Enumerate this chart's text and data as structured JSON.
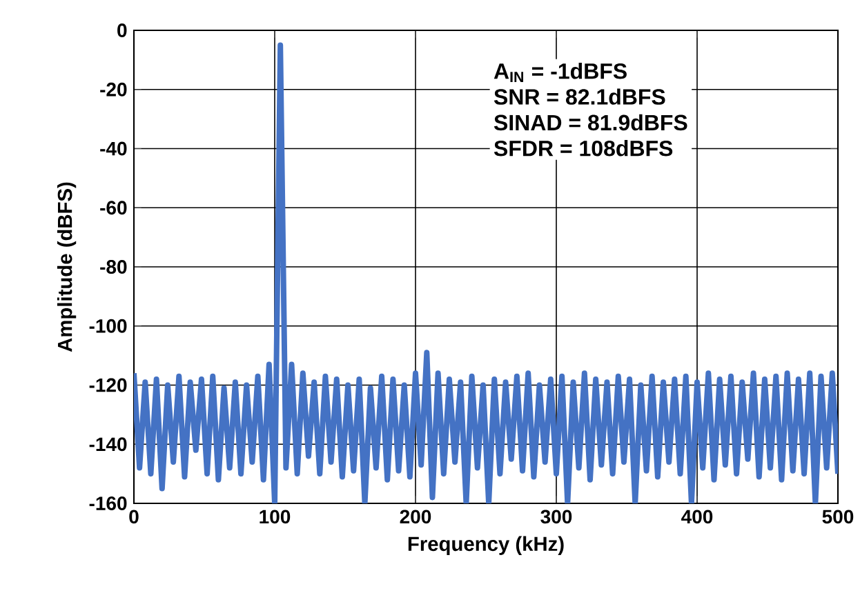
{
  "chart_data": {
    "type": "line",
    "xlabel": "Frequency (kHz)",
    "ylabel": "Amplitude (dBFS)",
    "xlim": [
      0,
      500
    ],
    "ylim": [
      -160,
      0
    ],
    "xticks": [
      0,
      100,
      200,
      300,
      400,
      500
    ],
    "yticks": [
      -160,
      -140,
      -120,
      -100,
      -80,
      -60,
      -40,
      -20,
      0
    ],
    "grid": true,
    "annotations": [
      "A$_{IN}$ = -1dBFS",
      "SNR = 82.1dBFS",
      "SINAD = 81.9dBFS",
      "SFDR = 108dBFS"
    ],
    "series": [
      {
        "color": "#4472c4",
        "x": [
          0,
          4,
          8,
          12,
          16,
          20,
          24,
          28,
          32,
          36,
          40,
          44,
          48,
          52,
          56,
          60,
          64,
          68,
          72,
          76,
          80,
          84,
          88,
          92,
          96,
          100,
          104,
          108,
          112,
          116,
          120,
          124,
          128,
          132,
          136,
          140,
          144,
          148,
          152,
          156,
          160,
          164,
          168,
          172,
          176,
          180,
          184,
          188,
          192,
          196,
          200,
          204,
          208,
          212,
          216,
          220,
          224,
          228,
          232,
          236,
          240,
          244,
          248,
          252,
          256,
          260,
          264,
          268,
          272,
          276,
          280,
          284,
          288,
          292,
          296,
          300,
          304,
          308,
          312,
          316,
          320,
          324,
          328,
          332,
          336,
          340,
          344,
          348,
          352,
          356,
          360,
          364,
          368,
          372,
          376,
          380,
          384,
          388,
          392,
          396,
          400,
          404,
          408,
          412,
          416,
          420,
          424,
          428,
          432,
          436,
          440,
          444,
          448,
          452,
          456,
          460,
          464,
          468,
          472,
          476,
          480,
          484,
          488,
          492,
          496,
          500
        ],
        "values": [
          -116,
          -148,
          -119,
          -150,
          -118,
          -155,
          -120,
          -146,
          -117,
          -151,
          -119,
          -142,
          -118,
          -150,
          -117,
          -152,
          -121,
          -148,
          -119,
          -150,
          -120,
          -146,
          -117,
          -152,
          -113,
          -160,
          -5,
          -148,
          -113,
          -150,
          -116,
          -144,
          -119,
          -150,
          -117,
          -146,
          -118,
          -151,
          -120,
          -149,
          -118,
          -160,
          -121,
          -148,
          -117,
          -152,
          -118,
          -149,
          -120,
          -151,
          -116,
          -147,
          -109,
          -158,
          -116,
          -150,
          -118,
          -146,
          -119,
          -160,
          -117,
          -148,
          -120,
          -160,
          -118,
          -150,
          -119,
          -145,
          -117,
          -149,
          -116,
          -151,
          -120,
          -146,
          -118,
          -150,
          -117,
          -160,
          -119,
          -148,
          -116,
          -152,
          -118,
          -147,
          -119,
          -150,
          -117,
          -146,
          -118,
          -160,
          -120,
          -149,
          -117,
          -151,
          -119,
          -146,
          -118,
          -150,
          -117,
          -160,
          -119,
          -148,
          -116,
          -152,
          -118,
          -147,
          -117,
          -150,
          -119,
          -145,
          -116,
          -151,
          -118,
          -148,
          -117,
          -152,
          -116,
          -149,
          -118,
          -150,
          -116,
          -160,
          -117,
          -148,
          -116,
          -150
        ]
      }
    ]
  }
}
